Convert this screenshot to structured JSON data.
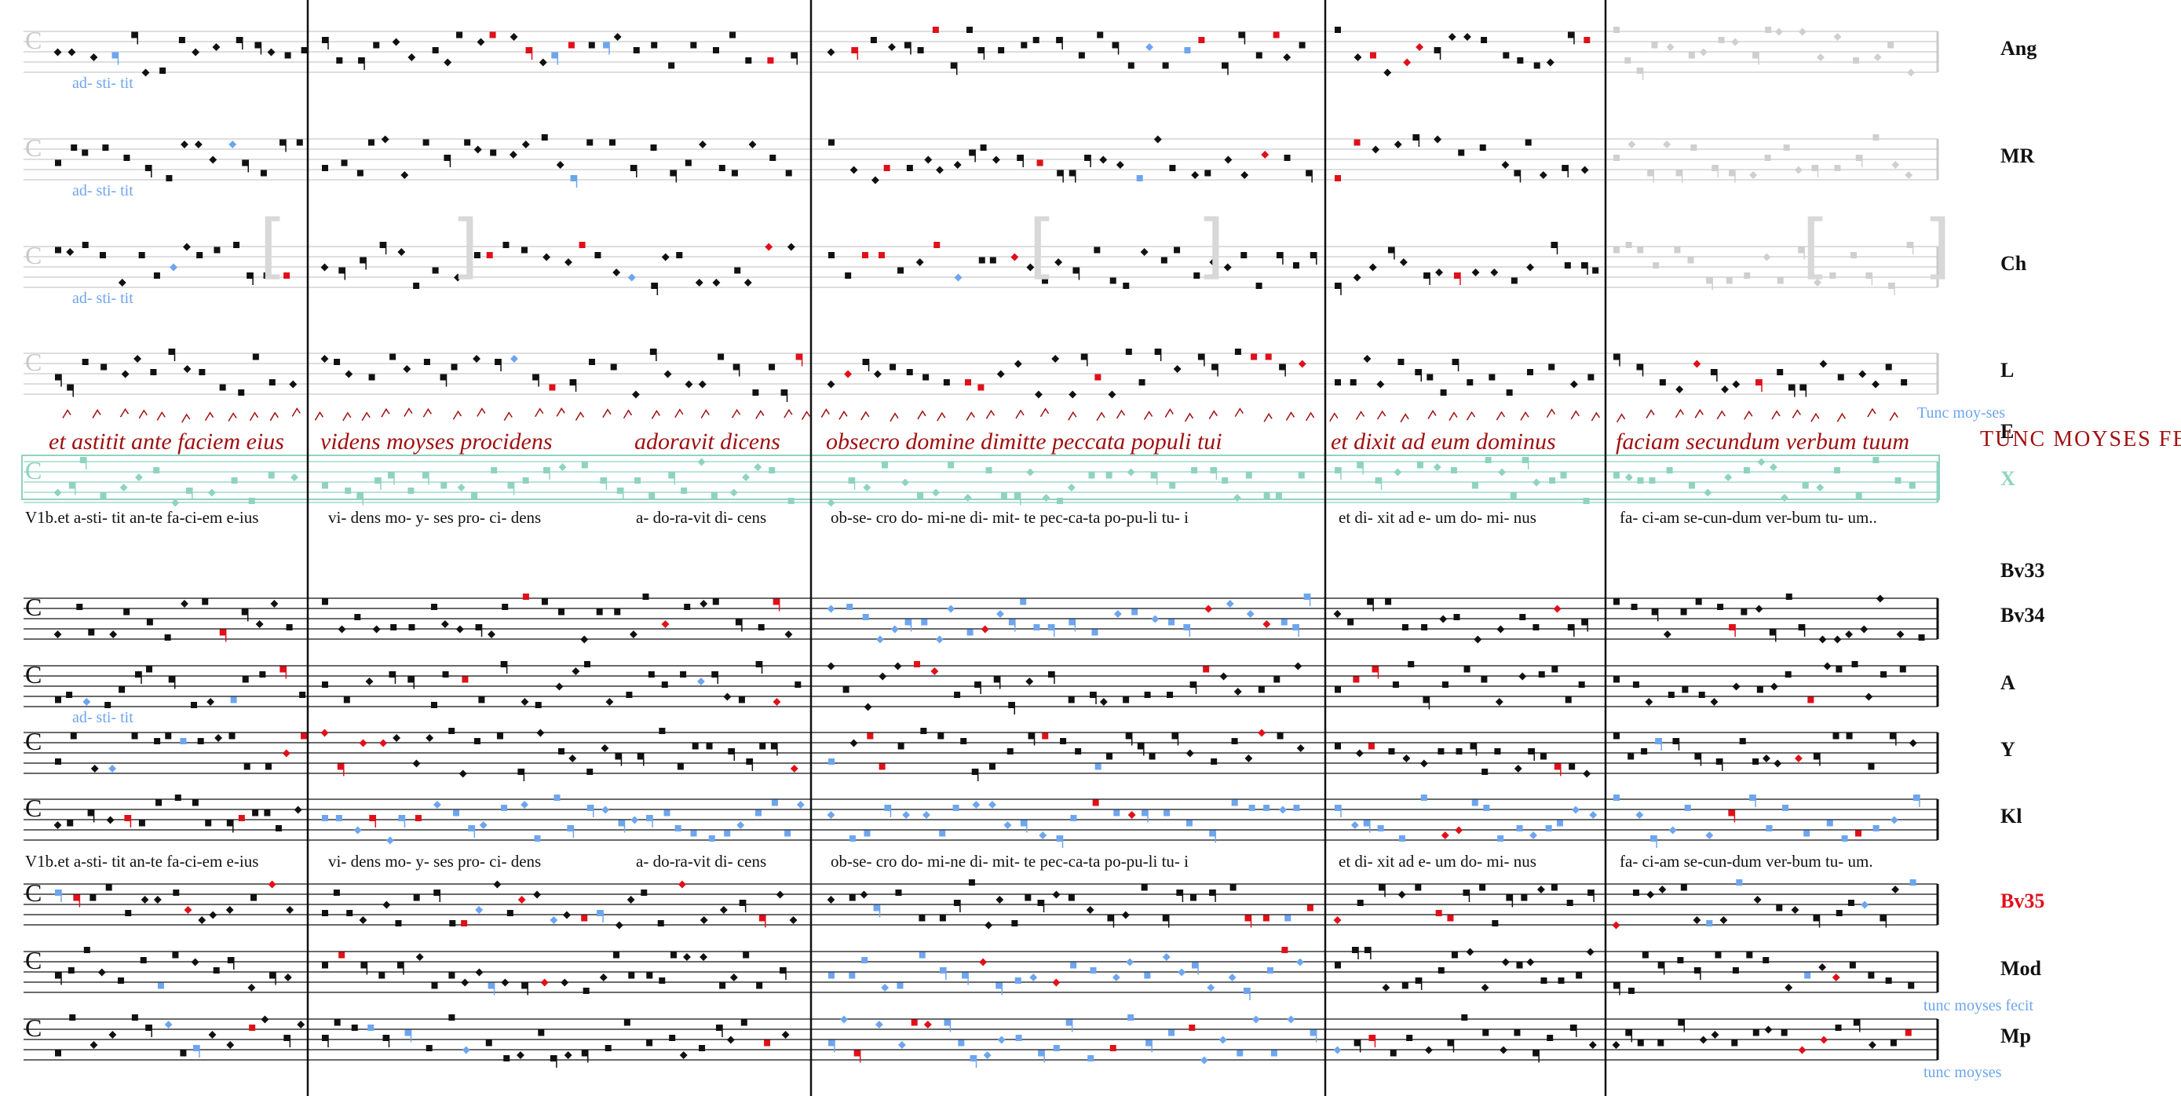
{
  "colors": {
    "ink": "#111111",
    "red": "#e0101a",
    "blue": "#6da5ee",
    "grey": "#cfcfcf",
    "teal": "#8fd3bf",
    "manuscript": "#a01010",
    "green": "#3a8a4a"
  },
  "upper_system": {
    "staves": [
      {
        "siglum": "Ang",
        "sublyric": "ad- sti- tit"
      },
      {
        "siglum": "MR",
        "sublyric": "ad- sti- tit"
      },
      {
        "siglum": "Ch",
        "sublyric": "ad- sti-  tit"
      },
      {
        "siglum": "L",
        "sublyric": ""
      },
      {
        "siglum": "E",
        "sublyric": ""
      },
      {
        "siglum": "X",
        "sublyric": ""
      }
    ],
    "e_manuscript": {
      "segments": [
        "et astitit ante faciem eius",
        "videns  moyses  procidens",
        "adoravit dicens",
        "obsecro  domine dimitte  peccata  populi tui",
        "et dixit ad eum  dominus",
        "faciam secundum  verbum tuum"
      ],
      "tunc_text": "Tunc moy-ses",
      "tunc_caps": "TUNC MOYSES FEC"
    },
    "lyrics": [
      "V1b.et  a-sti-     tit  an-te  fa-ci-em  e-ius",
      "vi-     dens      mo- y- ses       pro-   ci-   dens",
      "a- do-ra-vit   di-   cens",
      "ob-se-  cro     do-  mi-ne     di- mit- te         pec-ca-ta  po-pu-li       tu-    i",
      "et  di-  xit     ad     e-  um  do-  mi-  nus",
      "fa-  ci-am       se-cun-dum   ver-bum  tu-     um.."
    ]
  },
  "lower_system": {
    "staves": [
      {
        "siglum": "Bv33",
        "color": "ink",
        "sublyric": ""
      },
      {
        "siglum": "Bv34",
        "color": "ink",
        "sublyric": ""
      },
      {
        "siglum": "A",
        "color": "ink",
        "sublyric": "ad- sti- tit"
      },
      {
        "siglum": "Y",
        "color": "ink",
        "sublyric": ""
      },
      {
        "siglum": "Kl",
        "color": "ink",
        "sublyric": ""
      },
      {
        "siglum": "Bv35",
        "color": "red",
        "sublyric": ""
      },
      {
        "siglum": "Mod",
        "color": "ink",
        "sublyric": ""
      },
      {
        "siglum": "Mp",
        "color": "ink",
        "sublyric": ""
      }
    ],
    "lyrics": [
      "V1b.et  a-sti-   tit  an-te  fa-ci-em  e-ius",
      "vi-   dens    mo-  y- ses       pro-   ci-  dens",
      "a- do-ra-vit   di-    cens",
      "ob-se- cro     do-  mi-ne     di- mit-  te         pec-ca-ta  po-pu-li      tu-    i",
      "et  di-  xit     ad    e-  um  do-  mi- nus",
      "fa- ci-am       se-cun-dum  ver-bum  tu-    um."
    ],
    "marginal_notes": [
      "tunc moyses fecit",
      "tunc moyses"
    ]
  }
}
